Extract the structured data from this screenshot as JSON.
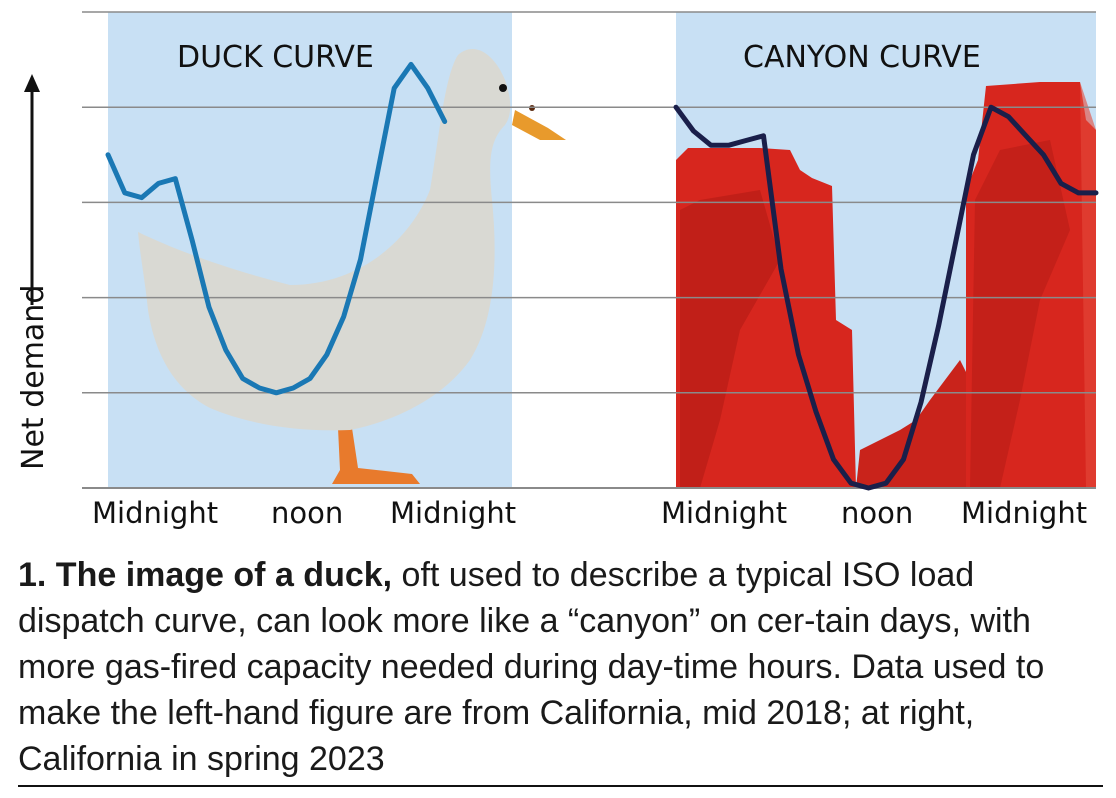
{
  "caption": {
    "lead": "1. The image of a duck,",
    "rest": " oft used to describe a typical ISO load dispatch curve, can look more like a “canyon” on cer-tain days, with more gas-fired capacity needed during day-time hours. Data used to make the left-hand figure are from California, mid 2018; at right, California in spring 2023"
  },
  "chart_data": [
    {
      "type": "line",
      "title": "DUCK CURVE",
      "ylabel": "Net demand",
      "xlabel": "",
      "x_tick_labels": [
        "Midnight",
        "noon",
        "Midnight"
      ],
      "x": [
        0,
        1,
        2,
        3,
        4,
        5,
        6,
        7,
        8,
        9,
        10,
        11,
        12,
        13,
        14,
        15,
        16,
        17,
        18,
        19,
        20,
        21,
        22,
        23,
        24
      ],
      "series": [
        {
          "values": [
            3.5,
            3.1,
            3.05,
            3.2,
            3.25,
            2.6,
            1.9,
            1.45,
            1.15,
            1.05,
            1.0,
            1.05,
            1.15,
            1.4,
            1.8,
            2.4,
            3.3,
            4.2,
            4.45,
            4.2,
            3.85,
            null,
            null,
            null,
            null
          ],
          "color": "#1a78b4"
        }
      ],
      "ylim": [
        0,
        5
      ],
      "grid": true,
      "colors": {
        "panel_bg": "#c8e0f4",
        "duck_body": "#d9d9d3",
        "duck_feet": "#e87a2c",
        "line": "#1a78b4",
        "grid": "#8a8a8a"
      }
    },
    {
      "type": "line",
      "title": "CANYON CURVE",
      "ylabel": "Net demand",
      "xlabel": "",
      "x_tick_labels": [
        "Midnight",
        "noon",
        "Midnight"
      ],
      "x": [
        0,
        1,
        2,
        3,
        4,
        5,
        6,
        7,
        8,
        9,
        10,
        11,
        12,
        13,
        14,
        15,
        16,
        17,
        18,
        19,
        20,
        21,
        22,
        23,
        24
      ],
      "series": [
        {
          "values": [
            4.0,
            3.75,
            3.6,
            3.6,
            3.65,
            3.7,
            2.3,
            1.4,
            0.8,
            0.3,
            0.05,
            0.0,
            0.05,
            0.3,
            0.9,
            1.7,
            2.6,
            3.5,
            4.0,
            3.9,
            3.7,
            3.5,
            3.2,
            3.1,
            3.1
          ],
          "color": "#1a1f4a"
        }
      ],
      "ylim": [
        0,
        5
      ],
      "grid": true,
      "colors": {
        "panel_bg": "#c8e0f4",
        "canyon": "#d7261e",
        "line": "#1a1f4a",
        "grid": "#8a8a8a"
      }
    }
  ]
}
